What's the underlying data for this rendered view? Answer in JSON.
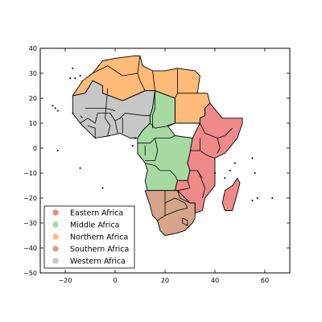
{
  "chart_data": {
    "type": "map",
    "title": "",
    "xlabel": "",
    "ylabel": "",
    "xlim": [
      -30,
      70
    ],
    "ylim": [
      -50,
      40
    ],
    "x_ticks": [
      -20,
      0,
      20,
      40,
      60
    ],
    "y_ticks": [
      40,
      30,
      20,
      10,
      0,
      -10,
      -20,
      -30,
      -40,
      -50
    ],
    "x_tick_labels": [
      "−20",
      "0",
      "20",
      "40",
      "60"
    ],
    "y_tick_labels": [
      "40",
      "30",
      "20",
      "10",
      "0",
      "−10",
      "−20",
      "−30",
      "−40",
      "−50"
    ],
    "legend_position": "lower-left",
    "series": [
      {
        "name": "Eastern Africa",
        "color": "#f08a8a"
      },
      {
        "name": "Middle Africa",
        "color": "#a7d9a3"
      },
      {
        "name": "Northern Africa",
        "color": "#ffbb78"
      },
      {
        "name": "Southern Africa",
        "color": "#d6a48a"
      },
      {
        "name": "Western Africa",
        "color": "#c7c7c7"
      }
    ]
  }
}
